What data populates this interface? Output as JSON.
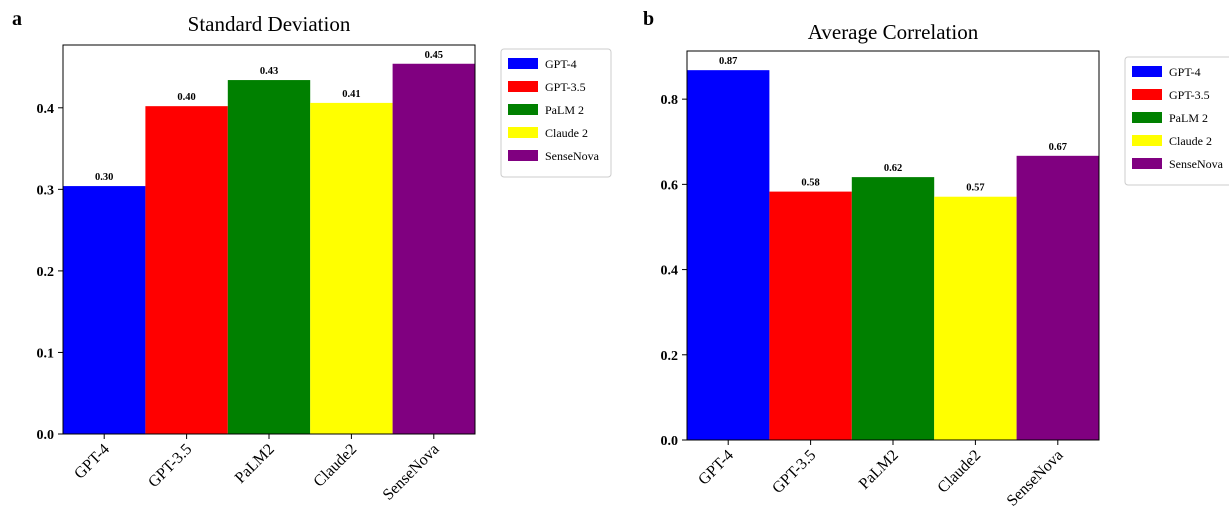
{
  "chart_data": [
    {
      "panel": "a",
      "type": "bar",
      "title": "Standard Deviation",
      "categories": [
        "GPT-4",
        "GPT-3.5",
        "PaLM2",
        "Claude2",
        "SenseNova"
      ],
      "values": [
        0.304,
        0.402,
        0.434,
        0.406,
        0.454
      ],
      "data_labels": [
        "0.30",
        "0.40",
        "0.43",
        "0.41",
        "0.45"
      ],
      "colors": [
        "#0000ff",
        "#ff0000",
        "#008000",
        "#ffff00",
        "#800080"
      ],
      "legend": [
        "GPT-4",
        "GPT-3.5",
        "PaLM 2",
        "Claude 2",
        "SenseNova"
      ],
      "legend_position": "outside-right",
      "yticks": [
        "0.0",
        "0.1",
        "0.2",
        "0.3",
        "0.4"
      ],
      "ylim": [
        0,
        0.477
      ],
      "grid": false,
      "xlabel": "",
      "ylabel": ""
    },
    {
      "panel": "b",
      "type": "bar",
      "title": "Average Correlation",
      "categories": [
        "GPT-4",
        "GPT-3.5",
        "PaLM2",
        "Claude2",
        "SenseNova"
      ],
      "values": [
        0.868,
        0.583,
        0.617,
        0.571,
        0.667
      ],
      "data_labels": [
        "0.87",
        "0.58",
        "0.62",
        "0.57",
        "0.67"
      ],
      "colors": [
        "#0000ff",
        "#ff0000",
        "#008000",
        "#ffff00",
        "#800080"
      ],
      "legend": [
        "GPT-4",
        "GPT-3.5",
        "PaLM 2",
        "Claude 2",
        "SenseNova"
      ],
      "legend_position": "outside-right",
      "yticks": [
        "0.0",
        "0.2",
        "0.4",
        "0.6",
        "0.8"
      ],
      "ylim": [
        0,
        0.913
      ],
      "grid": false,
      "xlabel": "",
      "ylabel": ""
    }
  ]
}
